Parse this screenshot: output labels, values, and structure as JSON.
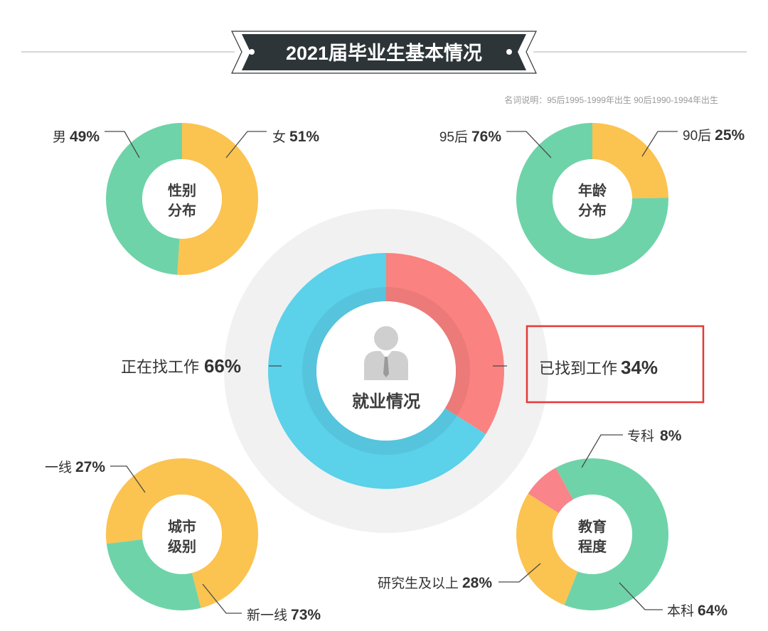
{
  "header": {
    "title": "2021届毕业生基本情况"
  },
  "note": "名词说明：95后1995-1999年出生  90后1990-1994年出生",
  "colors": {
    "green": "#6fd3a9",
    "yellow": "#fbc350",
    "blue": "#5bd1ea",
    "red": "#fa8280",
    "pink": "#f9848a",
    "header_bg": "#2d3538",
    "highlight_border": "#e53935"
  },
  "chart_data": [
    {
      "type": "pie",
      "variant": "donut",
      "center_label": [
        "性别",
        "分布"
      ],
      "slices": [
        {
          "label": "男",
          "value": 49,
          "value_text": "49%",
          "color": "#6fd3a9"
        },
        {
          "label": "女",
          "value": 51,
          "value_text": "51%",
          "color": "#fbc350"
        }
      ]
    },
    {
      "type": "pie",
      "variant": "donut",
      "center_label": [
        "年龄",
        "分布"
      ],
      "slices": [
        {
          "label": "95后",
          "value": 76,
          "value_text": "76%",
          "color": "#6fd3a9"
        },
        {
          "label": "90后",
          "value": 25,
          "value_text": "25%",
          "color": "#fbc350"
        }
      ]
    },
    {
      "type": "pie",
      "variant": "donut",
      "center_label": [
        "就业情况"
      ],
      "slices": [
        {
          "label": "正在找工作",
          "value": 66,
          "value_text": "66%",
          "color": "#5bd1ea"
        },
        {
          "label": "已找到工作",
          "value": 34,
          "value_text": "34%",
          "color": "#fa8280",
          "highlighted": true
        }
      ]
    },
    {
      "type": "pie",
      "variant": "donut",
      "center_label": [
        "城市",
        "级别"
      ],
      "slices": [
        {
          "label": "一线",
          "value": 27,
          "value_text": "27%",
          "color": "#6fd3a9"
        },
        {
          "label": "新一线",
          "value": 73,
          "value_text": "73%",
          "color": "#fbc350"
        }
      ]
    },
    {
      "type": "pie",
      "variant": "donut",
      "center_label": [
        "教育",
        "程度"
      ],
      "slices": [
        {
          "label": "专科",
          "value": 8,
          "value_text": "8%",
          "color": "#f9848a"
        },
        {
          "label": "研究生及以上",
          "value": 28,
          "value_text": "28%",
          "color": "#fbc350"
        },
        {
          "label": "本科",
          "value": 64,
          "value_text": "64%",
          "color": "#6fd3a9"
        }
      ]
    }
  ]
}
